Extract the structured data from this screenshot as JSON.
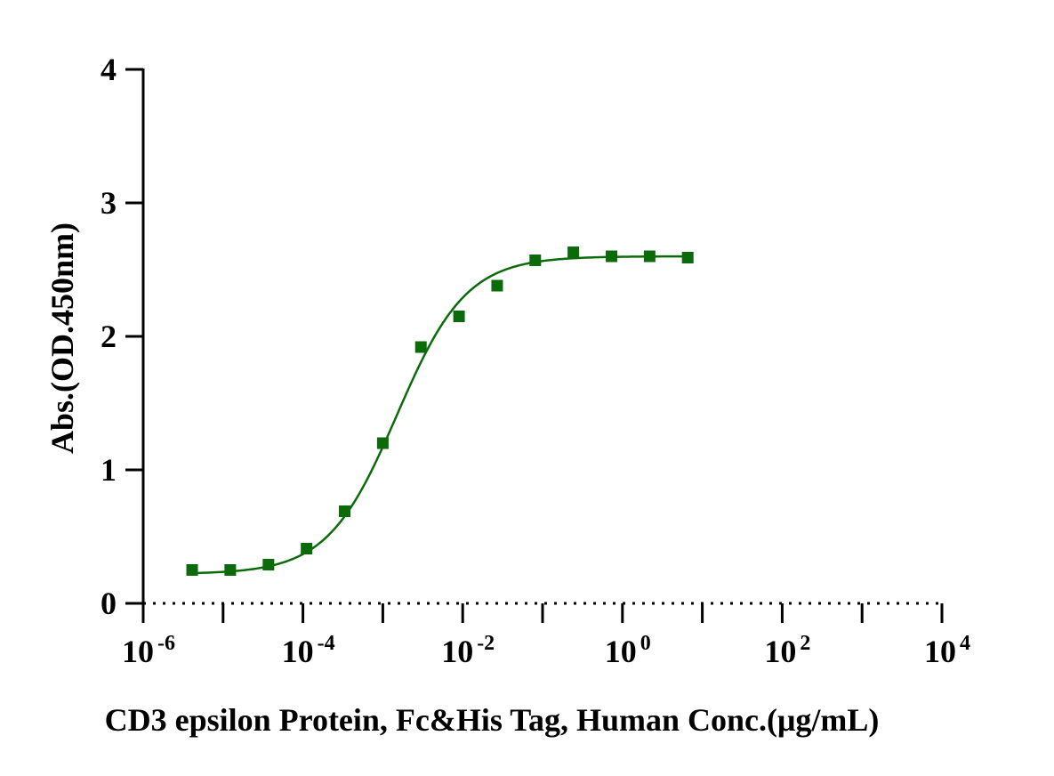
{
  "chart_data": {
    "type": "scatter",
    "title": "",
    "xlabel": "CD3 epsilon Protein, Fc&His Tag, Human Conc.(μg/mL)",
    "ylabel": "Abs.(OD.450nm)",
    "xscale": "log10",
    "xlim": [
      1e-06,
      10000
    ],
    "ylim": [
      0,
      4
    ],
    "x_ticks": [
      {
        "base": "10",
        "exp": "-6"
      },
      {
        "base": "10",
        "exp": "-4"
      },
      {
        "base": "10",
        "exp": "-2"
      },
      {
        "base": "10",
        "exp": "0"
      },
      {
        "base": "10",
        "exp": "2"
      },
      {
        "base": "10",
        "exp": "4"
      }
    ],
    "y_ticks": [
      "0",
      "1",
      "2",
      "3",
      "4"
    ],
    "grid": false,
    "legend": "none",
    "color": "#0b6b0b",
    "series": [
      {
        "marker": "square",
        "x": [
          4.1e-06,
          1.23e-05,
          3.7e-05,
          0.000111,
          0.000333,
          0.001,
          0.003,
          0.009,
          0.027,
          0.081,
          0.243,
          0.73,
          2.19,
          6.57
        ],
        "y": [
          0.25,
          0.25,
          0.29,
          0.41,
          0.69,
          1.2,
          1.92,
          2.15,
          2.38,
          2.57,
          2.63,
          2.6,
          2.6,
          2.59
        ]
      }
    ],
    "fit": {
      "type": "4PL",
      "bottom": 0.22,
      "top": 2.6,
      "ec50": 0.0015,
      "hill": 1.0,
      "x_range": [
        4.1e-06,
        6.57
      ]
    }
  }
}
